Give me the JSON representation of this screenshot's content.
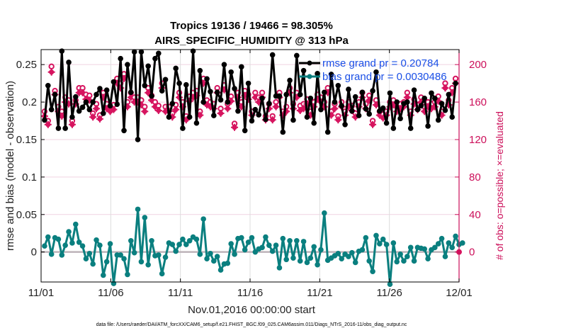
{
  "chart_data": {
    "type": "line",
    "title": "Tropics 19136 / 19466 = 98.305%",
    "subtitle": "AIRS_SPECIFIC_HUMIDITY @ 313 hPa",
    "xlabel": "Nov.01,2016 00:00:00 start",
    "ylabel": "rmse and bias (model - observation)",
    "ylabel_right": "# of obs: o=possible; ×=evaluated",
    "footnote": "data file: /Users/raeder/DAI/ATM_forcXX/CAM6_setup/f.e21.FHIST_BGC.f09_025.CAM6assim.011/Diags_NTrS_2016-11/obs_diag_output.nc",
    "x_ticks": [
      "11/01",
      "11/06",
      "11/11",
      "11/16",
      "11/21",
      "11/26",
      "12/01"
    ],
    "x_range_days": [
      0,
      30
    ],
    "y_ticks": [
      "0",
      "0.05",
      "0.1",
      "0.15",
      "0.2",
      "0.25"
    ],
    "y_tick_values": [
      0,
      0.05,
      0.1,
      0.15,
      0.2,
      0.25
    ],
    "ylim": [
      -0.04,
      0.27
    ],
    "y_right_ticks": [
      "0",
      "40",
      "80",
      "120",
      "160",
      "200"
    ],
    "y_right_tick_values": [
      0,
      40,
      80,
      120,
      160,
      200
    ],
    "ylim_right": [
      0,
      220
    ],
    "grid": true,
    "legend_position": "top-right",
    "colors": {
      "rmse": "#000000",
      "bias": "#0a7f7f",
      "obs": "#d6145f",
      "legend_text": "#1a4fe6",
      "right_axis": "#cc0f5a"
    },
    "series": [
      {
        "name": "rmse grand pr = 0.20784",
        "key": "rmse",
        "values": [
          0.176,
          0.222,
          0.19,
          0.21,
          0.165,
          0.268,
          0.165,
          0.253,
          0.18,
          0.207,
          0.188,
          0.193,
          0.2,
          0.19,
          0.2,
          0.21,
          0.218,
          0.185,
          0.216,
          0.195,
          0.227,
          0.197,
          0.258,
          0.162,
          0.25,
          0.213,
          0.267,
          0.15,
          0.267,
          0.222,
          0.248,
          0.208,
          0.258,
          0.265,
          0.215,
          0.23,
          0.18,
          0.198,
          0.245,
          0.225,
          0.165,
          0.223,
          0.18,
          0.268,
          0.172,
          0.242,
          0.2,
          0.231,
          0.214,
          0.182,
          0.213,
          0.203,
          0.25,
          0.2,
          0.24,
          0.218,
          0.188,
          0.247,
          0.162,
          0.225,
          0.175,
          0.19,
          0.183,
          0.205,
          0.177,
          0.198,
          0.263,
          0.208,
          0.208,
          0.16,
          0.21,
          0.229,
          0.176,
          0.262,
          0.21,
          0.242,
          0.18,
          0.205,
          0.172,
          0.238,
          0.19,
          0.213,
          0.16,
          0.237,
          0.2,
          0.222,
          0.195,
          0.17,
          0.217,
          0.188,
          0.207,
          0.182,
          0.213,
          0.191,
          0.184,
          0.215,
          0.24,
          0.188,
          0.192,
          0.172,
          0.212,
          0.165,
          0.2,
          0.178,
          0.198,
          0.2,
          0.165,
          0.216,
          0.19,
          0.195,
          0.205,
          0.168,
          0.212,
          0.205,
          0.176,
          0.198,
          0.189,
          0.21,
          0.18,
          0.225
        ]
      },
      {
        "name": "bias grand pr = 0.0030486",
        "key": "bias",
        "values": [
          0.008,
          0.02,
          -0.003,
          0.019,
          0.017,
          -0.004,
          0.009,
          0.027,
          0.012,
          0.037,
          0.013,
          0.008,
          -0.009,
          -0.002,
          -0.016,
          0.016,
          0.009,
          -0.031,
          -0.013,
          0.011,
          -0.042,
          -0.004,
          -0.004,
          -0.009,
          -0.03,
          0.015,
          -0.001,
          0.057,
          -0.013,
          0.046,
          -0.017,
          0.015,
          -0.005,
          -0.004,
          -0.029,
          -0.007,
          0.012,
          0.01,
          0.001,
          0.01,
          0.017,
          0.01,
          0.015,
          0.02,
          0.017,
          -0.003,
          0.044,
          -0.009,
          -0.002,
          -0.012,
          -0.006,
          -0.024,
          -0.016,
          -0.015,
          0.011,
          -0.003,
          0.018,
          0.019,
          0.003,
          0.013,
          0.019,
          0.0,
          0.004,
          0.006,
          0.02,
          0.009,
          0.001,
          0.009,
          -0.021,
          0.018,
          -0.01,
          0.015,
          -0.008,
          0.015,
          -0.012,
          0.014,
          -0.014,
          -0.008,
          0.007,
          -0.017,
          0.003,
          0.052,
          -0.011,
          -0.008,
          -0.005,
          -0.002,
          -0.009,
          -0.003,
          -0.006,
          -0.001,
          -0.014,
          0.001,
          0.003,
          0.019,
          -0.012,
          -0.026,
          0.022,
          0.011,
          0.017,
          0.01,
          -0.043,
          0.012,
          -0.013,
          -0.003,
          -0.012,
          -0.006,
          0.006,
          -0.012,
          0.006,
          0.005,
          0.004,
          -0.009,
          0.003,
          0.006,
          0.011,
          0.018,
          -0.006,
          0.012,
          0.006,
          0.021,
          0.01,
          0.012
        ]
      },
      {
        "name": "possible",
        "key": "obs_possible",
        "axis": "right",
        "marker": "o",
        "values": [
          150,
          140,
          198,
          172,
          155,
          150,
          165,
          162,
          140,
          162,
          175,
          175,
          168,
          167,
          148,
          158,
          146,
          170,
          158,
          155,
          157,
          185,
          180,
          190,
          160,
          170,
          165,
          165,
          162,
          155,
          175,
          167,
          160,
          156,
          180,
          155,
          155,
          148,
          157,
          170,
          160,
          145,
          166,
          170,
          172,
          150,
          185,
          162,
          160,
          158,
          175,
          153,
          178,
          158,
          166,
          137,
          170,
          160,
          172,
          168,
          150,
          170,
          165,
          170,
          145,
          158,
          145,
          160,
          170,
          150,
          155,
          175,
          158,
          170,
          156,
          158,
          163,
          150,
          160,
          168,
          165,
          160,
          175,
          150,
          158,
          145,
          160,
          150,
          160,
          156,
          148,
          160,
          170,
          158,
          167,
          140,
          162,
          150,
          147,
          150,
          160,
          162,
          155,
          158,
          160,
          170,
          150,
          163,
          157,
          165,
          155,
          160,
          158,
          160,
          166,
          150,
          180,
          162,
          175,
          185
        ]
      },
      {
        "name": "evaluated",
        "key": "obs_evaluated",
        "axis": "right",
        "marker": "×",
        "values": [
          145,
          136,
          192,
          168,
          150,
          145,
          160,
          158,
          136,
          158,
          170,
          170,
          163,
          162,
          144,
          153,
          142,
          165,
          153,
          150,
          152,
          180,
          175,
          185,
          155,
          165,
          160,
          160,
          157,
          150,
          170,
          162,
          155,
          151,
          175,
          150,
          150,
          144,
          152,
          165,
          155,
          141,
          161,
          165,
          167,
          146,
          180,
          157,
          155,
          153,
          170,
          148,
          173,
          153,
          161,
          133,
          165,
          155,
          167,
          163,
          146,
          165,
          160,
          165,
          141,
          153,
          141,
          155,
          165,
          146,
          150,
          170,
          153,
          165,
          151,
          153,
          158,
          146,
          155,
          163,
          160,
          155,
          170,
          146,
          153,
          141,
          155,
          146,
          155,
          151,
          144,
          155,
          165,
          153,
          162,
          136,
          157,
          146,
          143,
          146,
          155,
          157,
          150,
          153,
          155,
          165,
          146,
          158,
          152,
          160,
          150,
          155,
          153,
          155,
          161,
          146,
          175,
          157,
          170,
          180
        ]
      }
    ]
  }
}
